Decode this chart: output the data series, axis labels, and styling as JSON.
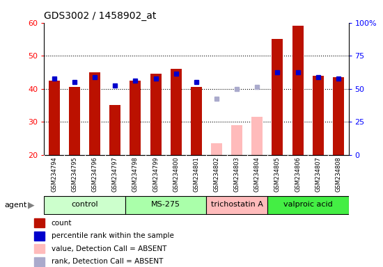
{
  "title": "GDS3002 / 1458902_at",
  "samples": [
    "GSM234794",
    "GSM234795",
    "GSM234796",
    "GSM234797",
    "GSM234798",
    "GSM234799",
    "GSM234800",
    "GSM234801",
    "GSM234802",
    "GSM234803",
    "GSM234804",
    "GSM234805",
    "GSM234806",
    "GSM234807",
    "GSM234808"
  ],
  "groups": [
    {
      "label": "control",
      "color": "#ccffcc",
      "start": 0,
      "end": 4
    },
    {
      "label": "MS-275",
      "color": "#aaffaa",
      "start": 4,
      "end": 8
    },
    {
      "label": "trichostatin A",
      "color": "#ffbbbb",
      "start": 8,
      "end": 11
    },
    {
      "label": "valproic acid",
      "color": "#44ee44",
      "start": 11,
      "end": 15
    }
  ],
  "count_values": [
    42.5,
    40.5,
    45.0,
    35.0,
    42.5,
    44.5,
    46.0,
    40.5,
    23.5,
    29.0,
    31.5,
    55.0,
    59.0,
    44.0,
    43.5
  ],
  "count_absent": [
    false,
    false,
    false,
    false,
    false,
    false,
    false,
    false,
    true,
    true,
    true,
    false,
    false,
    false,
    false
  ],
  "rank_values": [
    43.0,
    42.0,
    43.5,
    41.0,
    42.5,
    43.0,
    44.5,
    42.0,
    37.0,
    40.0,
    40.5,
    45.0,
    45.0,
    43.5,
    43.0
  ],
  "rank_absent": [
    false,
    false,
    false,
    false,
    false,
    false,
    false,
    false,
    true,
    true,
    true,
    false,
    false,
    false,
    false
  ],
  "ylim_left": [
    20,
    60
  ],
  "ylim_right": [
    0,
    100
  ],
  "yticks_left": [
    20,
    30,
    40,
    50,
    60
  ],
  "yticks_right": [
    0,
    25,
    50,
    75,
    100
  ],
  "bar_color_present": "#bb1100",
  "bar_color_absent": "#ffbbbb",
  "rank_color_present": "#0000cc",
  "rank_color_absent": "#aaaacc",
  "agent_label": "agent",
  "legend_items": [
    {
      "color": "#bb1100",
      "label": "count"
    },
    {
      "color": "#0000cc",
      "label": "percentile rank within the sample"
    },
    {
      "color": "#ffbbbb",
      "label": "value, Detection Call = ABSENT"
    },
    {
      "color": "#aaaacc",
      "label": "rank, Detection Call = ABSENT"
    }
  ],
  "grid_lines": [
    30,
    40,
    50
  ],
  "bar_width": 0.55,
  "marker_size": 5
}
